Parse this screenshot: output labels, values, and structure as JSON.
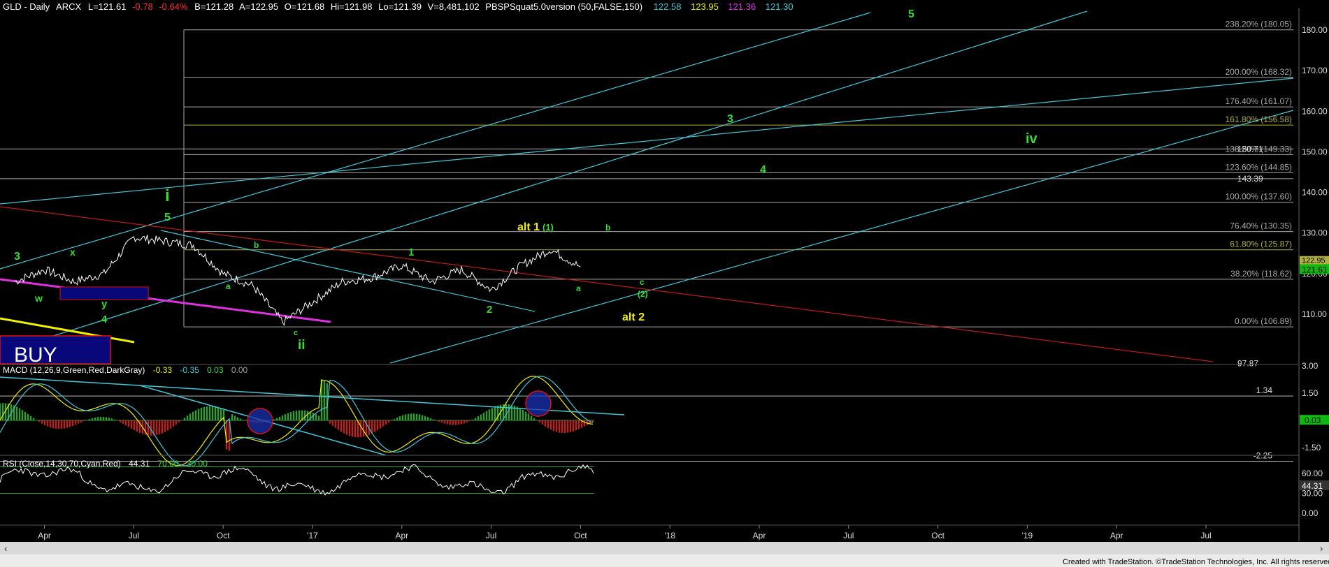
{
  "header": {
    "symbol": "GLD - Daily",
    "exchange": "ARCX",
    "last": "L=121.61",
    "change": "-0.78",
    "change_pct": "-0.64%",
    "bid": "B=121.28",
    "ask": "A=122.95",
    "open": "O=121.68",
    "high": "Hi=121.98",
    "low": "Lo=121.39",
    "volume": "V=8,481,102",
    "study": "PBSPSquat5.0version (50,FALSE,150)",
    "study_values": [
      "122.58",
      "123.95",
      "121.36",
      "121.30"
    ]
  },
  "colors": {
    "background": "#000000",
    "price": "#ffffff",
    "channel": "#3fc8d8",
    "fib": "#a8a8a8",
    "fib_gold": "#b0b040",
    "trend_red": "#c01818",
    "trend_magenta": "#e030e0",
    "trend_yellow": "#f0f000",
    "wave_green": "#33dd33",
    "wave_yellow": "#f0f000",
    "buy_box": "#08087a",
    "macd_pos": "#2fa02f",
    "macd_neg": "#c02020",
    "rsi": "#ffffff",
    "last_price_tag": "#0fb80f"
  },
  "price_axis": {
    "ticks": [
      "180.00",
      "170.00",
      "160.00",
      "150.00",
      "140.00",
      "130.00",
      "120.00",
      "110.00"
    ],
    "extra_labels": [
      "150.71",
      "143.39",
      "97.87"
    ],
    "last_price": "121.61",
    "upper_tag": "122.95"
  },
  "fib_labels": [
    {
      "text": "238.20% (180.05)",
      "gold": false
    },
    {
      "text": "200.00% (168.32)",
      "gold": false
    },
    {
      "text": "176.40% (161.07)",
      "gold": false
    },
    {
      "text": "161.80% (156.58)",
      "gold": true
    },
    {
      "text": "138.20% (149.33)",
      "gold": false
    },
    {
      "text": "123.60% (144.85)",
      "gold": false
    },
    {
      "text": "100.00% (137.60)",
      "gold": false
    },
    {
      "text": "76.40% (130.35)",
      "gold": false
    },
    {
      "text": "61.80% (125.87)",
      "gold": true
    },
    {
      "text": "38.20% (118.62)",
      "gold": false
    },
    {
      "text": "0.00% (106.89)",
      "gold": false
    }
  ],
  "wave_labels": [
    {
      "text": "3",
      "color": "green"
    },
    {
      "text": "x",
      "color": "green"
    },
    {
      "text": "w",
      "color": "green"
    },
    {
      "text": "y",
      "color": "green"
    },
    {
      "text": "4",
      "color": "green"
    },
    {
      "text": "i",
      "color": "green"
    },
    {
      "text": "5",
      "color": "green"
    },
    {
      "text": "a",
      "color": "green"
    },
    {
      "text": "b",
      "color": "green"
    },
    {
      "text": "c",
      "color": "green"
    },
    {
      "text": "ii",
      "color": "green"
    },
    {
      "text": "1",
      "color": "green"
    },
    {
      "text": "2",
      "color": "green"
    },
    {
      "text": "alt 1",
      "color": "yellow"
    },
    {
      "text": "(1)",
      "color": "green"
    },
    {
      "text": "b",
      "color": "green"
    },
    {
      "text": "a",
      "color": "green"
    },
    {
      "text": "c",
      "color": "green"
    },
    {
      "text": "(2)",
      "color": "green"
    },
    {
      "text": "alt 2",
      "color": "yellow"
    },
    {
      "text": "3",
      "color": "green"
    },
    {
      "text": "4",
      "color": "green"
    },
    {
      "text": "5",
      "color": "green"
    },
    {
      "text": "iv",
      "color": "green"
    }
  ],
  "buy_label": "BUY",
  "macd": {
    "title": "MACD (12,26,9,Green,Red,DarkGray)",
    "values": [
      "-0.33",
      "-0.35",
      "0.03",
      "0.00"
    ],
    "axis": [
      "3.00",
      "1.50",
      "-1.50"
    ],
    "levels": [
      "1.34",
      "-2.25"
    ],
    "last": "0.03"
  },
  "rsi": {
    "title": "RSI (Close,14,30,70,Cyan,Red)",
    "values": [
      "44.31",
      "70.00",
      "30.00"
    ],
    "axis": [
      "60.00",
      "30.00",
      "0.00"
    ],
    "last": "44.31"
  },
  "time_axis": [
    "Apr",
    "Jul",
    "Oct",
    "'17",
    "Apr",
    "Jul",
    "Oct",
    "'18",
    "Apr",
    "Jul",
    "Oct",
    "'19",
    "Apr",
    "Jul"
  ],
  "footer": "Created with TradeStation. ©TradeStation Technologies, Inc. All rights reserved.",
  "chart_data": {
    "type": "line",
    "title": "GLD - Daily",
    "x": [
      "2016-03",
      "2016-04",
      "2016-05",
      "2016-06",
      "2016-07",
      "2016-08",
      "2016-09",
      "2016-10",
      "2016-11",
      "2016-12",
      "2017-01",
      "2017-02",
      "2017-03",
      "2017-04",
      "2017-05",
      "2017-06",
      "2017-07",
      "2017-08",
      "2017-09",
      "2017-10"
    ],
    "series": [
      {
        "values": [
          118,
          121,
          118,
          120,
          129,
          128,
          127,
          120,
          117,
          108,
          113,
          118,
          119,
          122,
          118,
          121,
          116,
          122,
          126,
          121.61
        ]
      }
    ],
    "ylim": [
      94,
      186
    ]
  }
}
